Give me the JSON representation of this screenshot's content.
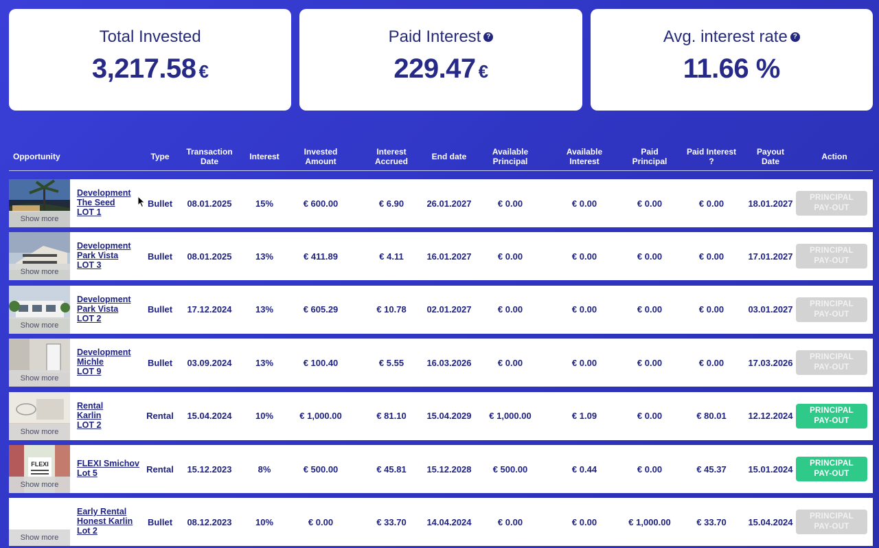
{
  "summary": {
    "total_invested": {
      "title": "Total Invested",
      "value": "3,217.58",
      "unit": "€"
    },
    "paid_interest": {
      "title": "Paid Interest",
      "value": "229.47",
      "unit": "€",
      "help": "?"
    },
    "avg_rate": {
      "title": "Avg. interest rate",
      "value": "11.66 %",
      "help": "?"
    }
  },
  "table": {
    "headers": {
      "opportunity": "Opportunity",
      "type": "Type",
      "transaction_date": [
        "Transaction",
        "Date"
      ],
      "interest": "Interest",
      "invested_amount": [
        "Invested",
        "Amount"
      ],
      "interest_accrued": [
        "Interest",
        "Accrued"
      ],
      "end_date": "End date",
      "available_principal": [
        "Available",
        "Principal"
      ],
      "available_interest": [
        "Available",
        "Interest"
      ],
      "paid_principal": [
        "Paid",
        "Principal"
      ],
      "paid_interest": [
        "Paid Interest",
        "?"
      ],
      "payout_date": [
        "Payout",
        "Date"
      ],
      "action": "Action"
    },
    "show_more_label": "Show more",
    "rows": [
      {
        "name": [
          "Development",
          "The Seed",
          "LOT 1"
        ],
        "type": "Bullet",
        "tx_date": "08.01.2025",
        "interest": "15%",
        "invested": "€ 600.00",
        "accrued": "€ 6.90",
        "end_date": "26.01.2027",
        "avail_principal": "€ 0.00",
        "avail_interest": "€ 0.00",
        "paid_principal": "€ 0.00",
        "paid_interest": "€ 0.00",
        "payout_date": "18.01.2027",
        "action": [
          "PRINCIPAL",
          "PAY-OUT"
        ],
        "action_enabled": false,
        "thumb": "palm"
      },
      {
        "name": [
          "Development",
          "Park Vista",
          "LOT 3"
        ],
        "type": "Bullet",
        "tx_date": "08.01.2025",
        "interest": "13%",
        "invested": "€ 411.89",
        "accrued": "€ 4.11",
        "end_date": "16.01.2027",
        "avail_principal": "€ 0.00",
        "avail_interest": "€ 0.00",
        "paid_principal": "€ 0.00",
        "paid_interest": "€ 0.00",
        "payout_date": "17.01.2027",
        "action": [
          "PRINCIPAL",
          "PAY-OUT"
        ],
        "action_enabled": false,
        "thumb": "villa"
      },
      {
        "name": [
          "Development",
          "Park Vista",
          "LOT 2"
        ],
        "type": "Bullet",
        "tx_date": "17.12.2024",
        "interest": "13%",
        "invested": "€ 605.29",
        "accrued": "€ 10.78",
        "end_date": "02.01.2027",
        "avail_principal": "€ 0.00",
        "avail_interest": "€ 0.00",
        "paid_principal": "€ 0.00",
        "paid_interest": "€ 0.00",
        "payout_date": "03.01.2027",
        "action": [
          "PRINCIPAL",
          "PAY-OUT"
        ],
        "action_enabled": false,
        "thumb": "house"
      },
      {
        "name": [
          "Development",
          "Michle",
          "LOT 9"
        ],
        "type": "Bullet",
        "tx_date": "03.09.2024",
        "interest": "13%",
        "invested": "€ 100.40",
        "accrued": "€ 5.55",
        "end_date": "16.03.2026",
        "avail_principal": "€ 0.00",
        "avail_interest": "€ 0.00",
        "paid_principal": "€ 0.00",
        "paid_interest": "€ 0.00",
        "payout_date": "17.03.2026",
        "action": [
          "PRINCIPAL",
          "PAY-OUT"
        ],
        "action_enabled": false,
        "thumb": "interior"
      },
      {
        "name": [
          "Rental",
          "Karlin",
          "LOT 2"
        ],
        "type": "Rental",
        "tx_date": "15.04.2024",
        "interest": "10%",
        "invested": "€ 1,000.00",
        "accrued": "€ 81.10",
        "end_date": "15.04.2029",
        "avail_principal": "€ 1,000.00",
        "avail_interest": "€ 1.09",
        "paid_principal": "€ 0.00",
        "paid_interest": "€ 80.01",
        "payout_date": "12.12.2024",
        "action": [
          "PRINCIPAL",
          "PAY-OUT"
        ],
        "action_enabled": true,
        "thumb": "room"
      },
      {
        "name": [
          "FLEXI Smichov",
          "Lot 5"
        ],
        "type": "Rental",
        "tx_date": "15.12.2023",
        "interest": "8%",
        "invested": "€ 500.00",
        "accrued": "€ 45.81",
        "end_date": "15.12.2028",
        "avail_principal": "€ 500.00",
        "avail_interest": "€ 0.44",
        "paid_principal": "€ 0.00",
        "paid_interest": "€ 45.37",
        "payout_date": "15.01.2024",
        "action": [
          "PRINCIPAL",
          "PAY-OUT"
        ],
        "action_enabled": true,
        "thumb": "flexi",
        "thumb_text": "FLEXI"
      },
      {
        "name": [
          "Early Rental",
          "Honest Karlin",
          "Lot 2"
        ],
        "type": "Bullet",
        "tx_date": "08.12.2023",
        "interest": "10%",
        "invested": "€ 0.00",
        "accrued": "€ 33.70",
        "end_date": "14.04.2024",
        "avail_principal": "€ 0.00",
        "avail_interest": "€ 0.00",
        "paid_principal": "€ 1,000.00",
        "paid_interest": "€ 33.70",
        "payout_date": "15.04.2024",
        "action": [
          "PRINCIPAL",
          "PAY-OUT"
        ],
        "action_enabled": false,
        "thumb": "blank"
      }
    ]
  },
  "colors": {
    "accent": "#2a2fb0",
    "text": "#1e2280",
    "payout_enabled": "#2fc98a",
    "payout_disabled": "#d3d3d3"
  }
}
